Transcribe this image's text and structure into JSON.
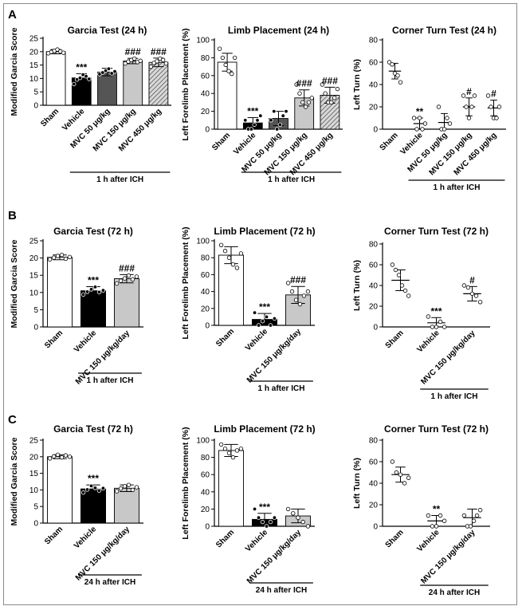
{
  "figure": {
    "panels": [
      {
        "letter": "A",
        "note": "1 h after ICH"
      },
      {
        "letter": "B",
        "note": "1 h after ICH"
      },
      {
        "letter": "C",
        "note": "24 h after ICH"
      }
    ]
  },
  "chart_data": [
    {
      "type": "bar",
      "title": "Garcia Test (24 h)",
      "ylabel": "Modified Garcia Score",
      "ylim": [
        0,
        25
      ],
      "yticks": [
        0,
        5,
        10,
        15,
        20,
        25
      ],
      "categories": [
        "Sham",
        "Vehicle",
        "MVC  50 μg/kg",
        "MVC  150 μg/kg",
        "MVC  450 μg/kg"
      ],
      "values": [
        20,
        10.2,
        12.4,
        16.5,
        16
      ],
      "errors": [
        0.8,
        1.6,
        1.4,
        1.0,
        1.6
      ],
      "significance": [
        "",
        "***",
        "",
        "###",
        "###"
      ],
      "note": "1 h after ICH",
      "points": [
        [
          19.4,
          19.9,
          20.3,
          20.8,
          20.1,
          19.6
        ],
        [
          7.9,
          9.6,
          10.2,
          11.4,
          10.8,
          9.8
        ],
        [
          11.6,
          12.2,
          12.9,
          13.6,
          11.9,
          12.6
        ],
        [
          15.6,
          16.3,
          16.9,
          17.4,
          16.1,
          16.6
        ],
        [
          14.4,
          15.8,
          16.4,
          17.4,
          16.9,
          15.6
        ]
      ],
      "fills": [
        "#ffffff",
        "#000000",
        "#555555",
        "#c8c8c8",
        "#cfcfcf"
      ],
      "hatched": [
        false,
        false,
        false,
        false,
        true
      ]
    },
    {
      "type": "bar",
      "title": "Limb Placement (24 h)",
      "ylabel": "Left Forelimb Placement (%)",
      "ylim": [
        0,
        100
      ],
      "yticks": [
        0,
        20,
        40,
        60,
        80,
        100
      ],
      "categories": [
        "Sham",
        "Vehicle",
        "MVC  50 μg/kg",
        "MVC  150 μg/kg",
        "MVC  450 μg/kg"
      ],
      "values": [
        75,
        7,
        12,
        35,
        38
      ],
      "errors": [
        10,
        6,
        8,
        9,
        9
      ],
      "significance": [
        "",
        "***",
        "",
        "###",
        "###"
      ],
      "note": "1 h after ICH",
      "points": [
        [
          90,
          80,
          72,
          65,
          62,
          80
        ],
        [
          10,
          0,
          0,
          5,
          10,
          15
        ],
        [
          10,
          20,
          0,
          5,
          15,
          20
        ],
        [
          50,
          40,
          30,
          25,
          30,
          35
        ],
        [
          50,
          40,
          30,
          30,
          35,
          45
        ]
      ],
      "fills": [
        "#ffffff",
        "#000000",
        "#555555",
        "#c8c8c8",
        "#cfcfcf"
      ],
      "hatched": [
        false,
        false,
        false,
        false,
        true
      ]
    },
    {
      "type": "scatter",
      "title": "Corner Turn Test (24 h)",
      "ylabel": "Left Turn (%)",
      "ylim": [
        0,
        80
      ],
      "yticks": [
        0,
        20,
        40,
        60,
        80
      ],
      "categories": [
        "Sham",
        "Vehicle",
        "MVC  50 μg/kg",
        "MVC  150 μg/kg",
        "MVC  450 μg/kg"
      ],
      "values": [
        52,
        5,
        6,
        20,
        19
      ],
      "errors": [
        7,
        5,
        8,
        8,
        7
      ],
      "significance": [
        "",
        "**",
        "",
        "#",
        "#"
      ],
      "note": "1 h after ICH",
      "points": [
        [
          60,
          58,
          50,
          48,
          42
        ],
        [
          10,
          0,
          10,
          0,
          5
        ],
        [
          20,
          0,
          0,
          10,
          5
        ],
        [
          30,
          20,
          10,
          20,
          30
        ],
        [
          30,
          20,
          10,
          10,
          20
        ]
      ]
    },
    {
      "type": "bar",
      "title": "Garcia Test (72 h)",
      "ylabel": "Modified Garcia Score",
      "ylim": [
        0,
        25
      ],
      "yticks": [
        0,
        5,
        10,
        15,
        20,
        25
      ],
      "categories": [
        "Sham",
        "Vehicle",
        "MVC  150 μg/kg/day"
      ],
      "values": [
        20.2,
        10.5,
        14
      ],
      "errors": [
        0.7,
        1.2,
        1.2
      ],
      "significance": [
        "",
        "***",
        "###"
      ],
      "note": "1 h after ICH",
      "points": [
        [
          19.6,
          20.1,
          20.6,
          20.9,
          19.8,
          20.3
        ],
        [
          9.4,
          10.2,
          10.9,
          11.6,
          10.1,
          10.6
        ],
        [
          12.6,
          13.4,
          14.1,
          14.9,
          13.8,
          14.6
        ]
      ],
      "fills": [
        "#ffffff",
        "#000000",
        "#c8c8c8"
      ],
      "hatched": [
        false,
        false,
        false
      ]
    },
    {
      "type": "bar",
      "title": "Limb Placement (72 h)",
      "ylabel": "Left Forelimb Placement (%)",
      "ylim": [
        0,
        100
      ],
      "yticks": [
        0,
        20,
        40,
        60,
        80,
        100
      ],
      "categories": [
        "Sham",
        "Vehicle",
        "MVC  150 μg/kg/day"
      ],
      "values": [
        83,
        7,
        36
      ],
      "errors": [
        10,
        7,
        10
      ],
      "significance": [
        "",
        "***",
        "###"
      ],
      "note": "1 h after ICH",
      "points": [
        [
          95,
          88,
          80,
          72,
          68,
          85
        ],
        [
          15,
          0,
          5,
          10,
          0,
          8
        ],
        [
          50,
          40,
          30,
          25,
          35,
          40
        ]
      ],
      "fills": [
        "#ffffff",
        "#000000",
        "#c8c8c8"
      ],
      "hatched": [
        false,
        false,
        false
      ]
    },
    {
      "type": "scatter",
      "title": "Corner Turn Test (72 h)",
      "ylabel": "Left Turn (%)",
      "ylim": [
        0,
        80
      ],
      "yticks": [
        0,
        20,
        40,
        60,
        80
      ],
      "categories": [
        "Sham",
        "Vehicle",
        "MVC  150 μg/kg/day"
      ],
      "values": [
        45,
        4,
        32
      ],
      "errors": [
        10,
        5,
        7
      ],
      "significance": [
        "",
        "***",
        "#"
      ],
      "note": "1 h after ICH",
      "points": [
        [
          60,
          55,
          50,
          40,
          35,
          30
        ],
        [
          10,
          0,
          0,
          5,
          0
        ],
        [
          40,
          38,
          32,
          30,
          24
        ]
      ]
    },
    {
      "type": "bar",
      "title": "Garcia Test (72 h)",
      "ylabel": "Modified Garcia Score",
      "ylim": [
        0,
        25
      ],
      "yticks": [
        0,
        5,
        10,
        15,
        20,
        25
      ],
      "categories": [
        "Sham",
        "Vehicle",
        "MVC  150 μg/kg/day"
      ],
      "values": [
        20,
        10.3,
        10.5
      ],
      "errors": [
        0.6,
        1.2,
        1.0
      ],
      "significance": [
        "",
        "***",
        ""
      ],
      "note": "24 h after ICH",
      "points": [
        [
          19.5,
          20.1,
          20.6,
          19.8,
          20.4,
          20.0
        ],
        [
          9.2,
          10.1,
          11.2,
          10.6,
          9.8,
          10.5
        ],
        [
          9.6,
          10.4,
          11.1,
          11.5,
          10.0,
          10.8
        ]
      ],
      "fills": [
        "#ffffff",
        "#000000",
        "#c8c8c8"
      ],
      "hatched": [
        false,
        false,
        false
      ]
    },
    {
      "type": "bar",
      "title": "Limb Placement (72 h)",
      "ylabel": "Left Forelimb Placement (%)",
      "ylim": [
        0,
        100
      ],
      "yticks": [
        0,
        20,
        40,
        60,
        80,
        100
      ],
      "categories": [
        "Sham",
        "Vehicle",
        "MVC  150 μg/kg/day"
      ],
      "values": [
        88,
        8,
        12
      ],
      "errors": [
        7,
        7,
        8
      ],
      "significance": [
        "",
        "***",
        ""
      ],
      "note": "24 h after ICH",
      "points": [
        [
          95,
          90,
          85,
          80,
          88,
          90
        ],
        [
          20,
          10,
          5,
          0,
          5,
          10
        ],
        [
          20,
          15,
          10,
          5,
          0
        ]
      ],
      "fills": [
        "#ffffff",
        "#000000",
        "#c8c8c8"
      ],
      "hatched": [
        false,
        false,
        false
      ]
    },
    {
      "type": "scatter",
      "title": "Corner Turn Test (72 h)",
      "ylabel": "Left Turn (%)",
      "ylim": [
        0,
        80
      ],
      "yticks": [
        0,
        20,
        40,
        60,
        80
      ],
      "categories": [
        "Sham",
        "Vehicle",
        "MVC  150 μg/kg/day"
      ],
      "values": [
        48,
        5,
        8
      ],
      "errors": [
        7,
        5,
        8
      ],
      "significance": [
        "",
        "**",
        ""
      ],
      "note": "24 h after ICH",
      "points": [
        [
          60,
          50,
          48,
          40,
          45
        ],
        [
          10,
          0,
          0,
          10,
          5
        ],
        [
          10,
          0,
          0,
          5,
          10,
          15
        ]
      ]
    }
  ]
}
